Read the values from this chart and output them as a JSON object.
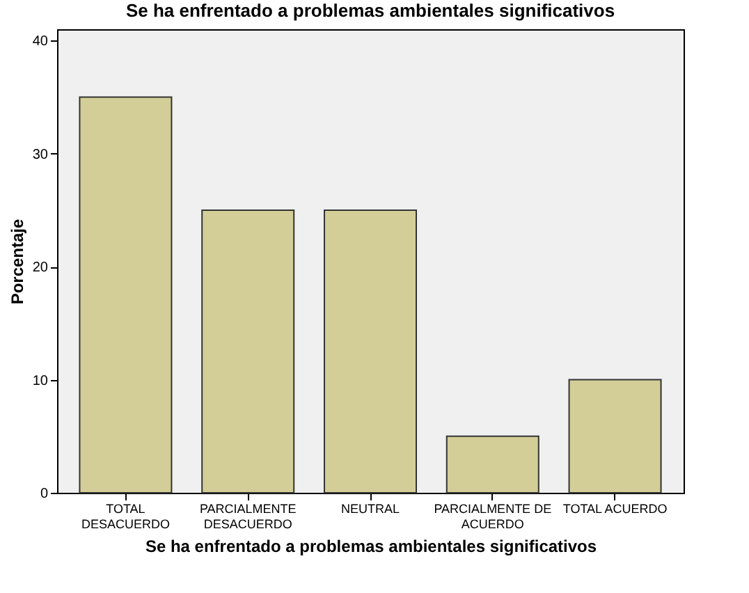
{
  "chart_data": {
    "type": "bar",
    "title": "Se ha enfrentado a problemas ambientales significativos",
    "xlabel": "Se ha enfrentado a problemas ambientales significativos",
    "ylabel": "Porcentaje",
    "categories": [
      "TOTAL DESACUERDO",
      "PARCIALMENTE DESACUERDO",
      "NEUTRAL",
      "PARCIALMENTE DE ACUERDO",
      "TOTAL ACUERDO"
    ],
    "values": [
      35,
      25,
      25,
      5,
      10
    ],
    "color": "#d3ce97",
    "ylim": [
      0,
      41
    ],
    "yticks": [
      0,
      10,
      20,
      30,
      40
    ],
    "grid": false
  }
}
